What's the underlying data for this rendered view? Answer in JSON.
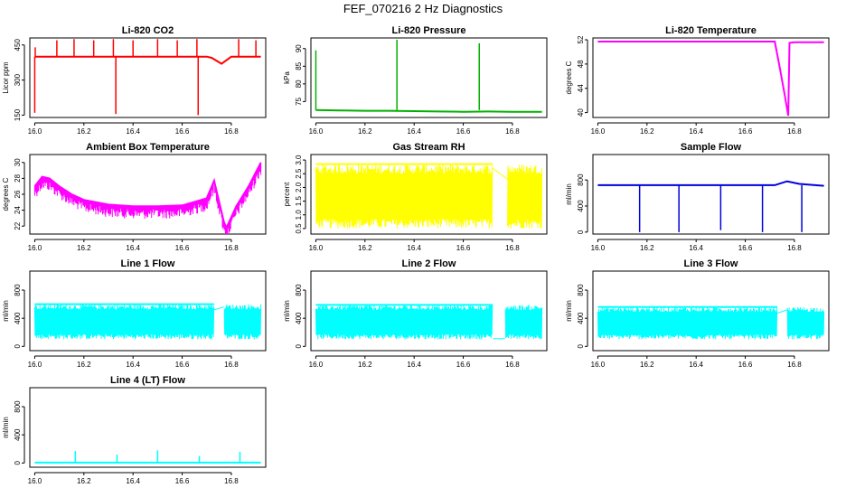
{
  "main_title": "FEF_070216  2 Hz Diagnostics",
  "chart_data": [
    {
      "type": "line",
      "title": "Li-820 CO2",
      "ylabel": "Licor ppm",
      "color": "#ff0000",
      "xlim": [
        15.98,
        16.94
      ],
      "ylim": [
        140,
        480
      ],
      "xticks": [
        16.0,
        16.2,
        16.4,
        16.6,
        16.8
      ],
      "xtick_labels": [
        "16.0",
        "16.2",
        "16.4",
        "16.6",
        "16.8"
      ],
      "yticks": [
        150,
        300,
        450
      ],
      "ytick_labels": [
        "150",
        "300",
        "450"
      ],
      "series": [
        {
          "name": "CO2",
          "x": [
            16.0,
            16.05,
            16.1,
            16.2,
            16.3,
            16.4,
            16.5,
            16.6,
            16.7,
            16.72,
            16.76,
            16.8,
            16.85,
            16.92
          ],
          "y": [
            400,
            400,
            400,
            400,
            400,
            400,
            400,
            400,
            400,
            395,
            370,
            400,
            400,
            400
          ]
        }
      ],
      "spikes": [
        {
          "x": 16.0,
          "y": 160
        },
        {
          "x": 16.002,
          "y": 440
        },
        {
          "x": 16.09,
          "y": 470
        },
        {
          "x": 16.16,
          "y": 475
        },
        {
          "x": 16.24,
          "y": 470
        },
        {
          "x": 16.32,
          "y": 475
        },
        {
          "x": 16.33,
          "y": 155
        },
        {
          "x": 16.4,
          "y": 470
        },
        {
          "x": 16.5,
          "y": 475
        },
        {
          "x": 16.58,
          "y": 470
        },
        {
          "x": 16.66,
          "y": 475
        },
        {
          "x": 16.665,
          "y": 150
        },
        {
          "x": 16.83,
          "y": 475
        },
        {
          "x": 16.9,
          "y": 470
        }
      ]
    },
    {
      "type": "line",
      "title": "Li-820 Pressure",
      "ylabel": "kPa",
      "color": "#00b000",
      "xlim": [
        15.98,
        16.94
      ],
      "ylim": [
        70.5,
        93
      ],
      "xticks": [
        16.0,
        16.2,
        16.4,
        16.6,
        16.8
      ],
      "xtick_labels": [
        "16.0",
        "16.2",
        "16.4",
        "16.6",
        "16.8"
      ],
      "yticks": [
        75,
        80,
        85,
        90
      ],
      "ytick_labels": [
        "75",
        "80",
        "85",
        "90"
      ],
      "series": [
        {
          "name": "Pressure",
          "x": [
            16.0,
            16.1,
            16.2,
            16.3,
            16.4,
            16.5,
            16.6,
            16.7,
            16.8,
            16.92
          ],
          "y": [
            72.6,
            72.5,
            72.4,
            72.4,
            72.3,
            72.2,
            72.1,
            72.2,
            72.1,
            72.1
          ]
        }
      ],
      "spikes": [
        {
          "x": 16.0,
          "y": 89.5
        },
        {
          "x": 16.33,
          "y": 92.5
        },
        {
          "x": 16.665,
          "y": 91.5
        }
      ]
    },
    {
      "type": "line",
      "title": "Li-820 Temperature",
      "ylabel": "degrees C",
      "color": "#ff00ff",
      "xlim": [
        15.98,
        16.94
      ],
      "ylim": [
        39.2,
        52.3
      ],
      "xticks": [
        16.0,
        16.2,
        16.4,
        16.6,
        16.8
      ],
      "xtick_labels": [
        "16.0",
        "16.2",
        "16.4",
        "16.6",
        "16.8"
      ],
      "yticks": [
        40,
        44,
        48,
        52
      ],
      "ytick_labels": [
        "40",
        "44",
        "48",
        "52"
      ],
      "series": [
        {
          "name": "Temperature",
          "x": [
            16.0,
            16.2,
            16.4,
            16.6,
            16.72,
            16.74,
            16.76,
            16.775,
            16.78,
            16.8,
            16.85,
            16.92
          ],
          "y": [
            51.7,
            51.7,
            51.7,
            51.7,
            51.7,
            47.5,
            43.0,
            39.5,
            51.5,
            51.6,
            51.6,
            51.6
          ]
        }
      ],
      "spikes": []
    },
    {
      "type": "line",
      "title": "Ambient Box Temperature",
      "ylabel": "degrees C",
      "color": "#ff00ff",
      "xlim": [
        15.98,
        16.94
      ],
      "ylim": [
        21,
        31
      ],
      "xticks": [
        16.0,
        16.2,
        16.4,
        16.6,
        16.8
      ],
      "xtick_labels": [
        "16.0",
        "16.2",
        "16.4",
        "16.6",
        "16.8"
      ],
      "yticks": [
        22,
        24,
        26,
        28,
        30
      ],
      "ytick_labels": [
        "22",
        "24",
        "26",
        "28",
        "30"
      ],
      "series": [
        {
          "name": "Box Temp",
          "x": [
            16.0,
            16.03,
            16.06,
            16.1,
            16.15,
            16.2,
            16.3,
            16.4,
            16.5,
            16.6,
            16.7,
            16.73,
            16.77,
            16.78,
            16.82,
            16.87,
            16.92
          ],
          "y": [
            27.0,
            28.2,
            28.0,
            27.0,
            26.0,
            25.3,
            24.7,
            24.5,
            24.5,
            24.6,
            25.5,
            27.7,
            22.5,
            21.8,
            24.5,
            27.0,
            30.0
          ]
        }
      ],
      "spikes": []
    },
    {
      "type": "line",
      "title": "Gas Stream RH",
      "ylabel": "percent",
      "color": "#ffff00",
      "xlim": [
        15.98,
        16.94
      ],
      "ylim": [
        0.3,
        3.2
      ],
      "xticks": [
        16.0,
        16.2,
        16.4,
        16.6,
        16.8
      ],
      "xtick_labels": [
        "16.0",
        "16.2",
        "16.4",
        "16.6",
        "16.8"
      ],
      "yticks": [
        0.5,
        1.0,
        1.5,
        2.0,
        2.5,
        3.0
      ],
      "ytick_labels": [
        "0.5",
        "1.0",
        "1.5",
        "2.0",
        "2.5",
        "3.0"
      ],
      "band": {
        "low": 0.5,
        "high": 2.85,
        "gap": [
          16.72,
          16.78
        ]
      },
      "series": [
        {
          "name": "RH",
          "x": [
            16.72,
            16.78
          ],
          "y": [
            2.7,
            2.3
          ]
        }
      ],
      "spikes": []
    },
    {
      "type": "line",
      "title": "Sample Flow",
      "ylabel": "ml/min",
      "color": "#0000dd",
      "xlim": [
        15.98,
        16.94
      ],
      "ylim": [
        -30,
        1190
      ],
      "xticks": [
        16.0,
        16.2,
        16.4,
        16.6,
        16.8
      ],
      "xtick_labels": [
        "16.0",
        "16.2",
        "16.4",
        "16.6",
        "16.8"
      ],
      "yticks": [
        0,
        400,
        800
      ],
      "ytick_labels": [
        "0",
        "400",
        "800"
      ],
      "series": [
        {
          "name": "Sample Flow",
          "x": [
            16.0,
            16.2,
            16.4,
            16.6,
            16.72,
            16.77,
            16.82,
            16.92
          ],
          "y": [
            720,
            720,
            720,
            720,
            720,
            780,
            740,
            710
          ]
        }
      ],
      "spikes": [
        {
          "x": 16.17,
          "y": 0
        },
        {
          "x": 16.33,
          "y": 0
        },
        {
          "x": 16.5,
          "y": 30
        },
        {
          "x": 16.67,
          "y": 0
        },
        {
          "x": 16.83,
          "y": 0
        }
      ]
    },
    {
      "type": "line",
      "title": "Line 1 Flow",
      "ylabel": "ml/min",
      "color": "#00ffff",
      "xlim": [
        15.98,
        16.94
      ],
      "ylim": [
        -60,
        1070
      ],
      "xticks": [
        16.0,
        16.2,
        16.4,
        16.6,
        16.8
      ],
      "xtick_labels": [
        "16.0",
        "16.2",
        "16.4",
        "16.6",
        "16.8"
      ],
      "yticks": [
        0,
        400,
        800
      ],
      "ytick_labels": [
        "0",
        "400",
        "800"
      ],
      "band": {
        "low": 100,
        "high": 600,
        "gap": [
          16.73,
          16.77
        ]
      },
      "series": [
        {
          "name": "Line 1",
          "x": [
            16.73,
            16.77
          ],
          "y": [
            520,
            560
          ]
        }
      ],
      "spikes": []
    },
    {
      "type": "line",
      "title": "Line 2 Flow",
      "ylabel": "ml/min",
      "color": "#00ffff",
      "xlim": [
        15.98,
        16.94
      ],
      "ylim": [
        -60,
        1070
      ],
      "xticks": [
        16.0,
        16.2,
        16.4,
        16.6,
        16.8
      ],
      "xtick_labels": [
        "16.0",
        "16.2",
        "16.4",
        "16.6",
        "16.8"
      ],
      "yticks": [
        0,
        400,
        800
      ],
      "ytick_labels": [
        "0",
        "400",
        "800"
      ],
      "band": {
        "low": 100,
        "high": 590,
        "gap": [
          16.72,
          16.77
        ]
      },
      "series": [
        {
          "name": "Line 2",
          "x": [
            16.72,
            16.77
          ],
          "y": [
            110,
            110
          ]
        }
      ],
      "spikes": []
    },
    {
      "type": "line",
      "title": "Line 3 Flow",
      "ylabel": "ml/min",
      "color": "#00ffff",
      "xlim": [
        15.98,
        16.94
      ],
      "ylim": [
        -60,
        1070
      ],
      "xticks": [
        16.0,
        16.2,
        16.4,
        16.6,
        16.8
      ],
      "xtick_labels": [
        "16.0",
        "16.2",
        "16.4",
        "16.6",
        "16.8"
      ],
      "yticks": [
        0,
        400,
        800
      ],
      "ytick_labels": [
        "0",
        "400",
        "800"
      ],
      "band": {
        "low": 100,
        "high": 560,
        "gap": [
          16.73,
          16.77
        ]
      },
      "series": [
        {
          "name": "Line 3",
          "x": [
            16.73,
            16.77
          ],
          "y": [
            470,
            520
          ]
        }
      ],
      "spikes": []
    },
    {
      "type": "line",
      "title": "Line 4 (LT) Flow",
      "ylabel": "ml/min",
      "color": "#00ffff",
      "xlim": [
        15.98,
        16.94
      ],
      "ylim": [
        -60,
        1070
      ],
      "xticks": [
        16.0,
        16.2,
        16.4,
        16.6,
        16.8
      ],
      "xtick_labels": [
        "16.0",
        "16.2",
        "16.4",
        "16.6",
        "16.8"
      ],
      "yticks": [
        0,
        400,
        800
      ],
      "ytick_labels": [
        "0",
        "400",
        "800"
      ],
      "series": [
        {
          "name": "Line 4",
          "x": [
            16.0,
            16.2,
            16.4,
            16.6,
            16.8,
            16.92
          ],
          "y": [
            5,
            5,
            5,
            5,
            5,
            5
          ]
        }
      ],
      "spikes": [
        {
          "x": 16.165,
          "y": 170
        },
        {
          "x": 16.335,
          "y": 120
        },
        {
          "x": 16.5,
          "y": 180
        },
        {
          "x": 16.67,
          "y": 100
        },
        {
          "x": 16.835,
          "y": 160
        }
      ]
    }
  ]
}
